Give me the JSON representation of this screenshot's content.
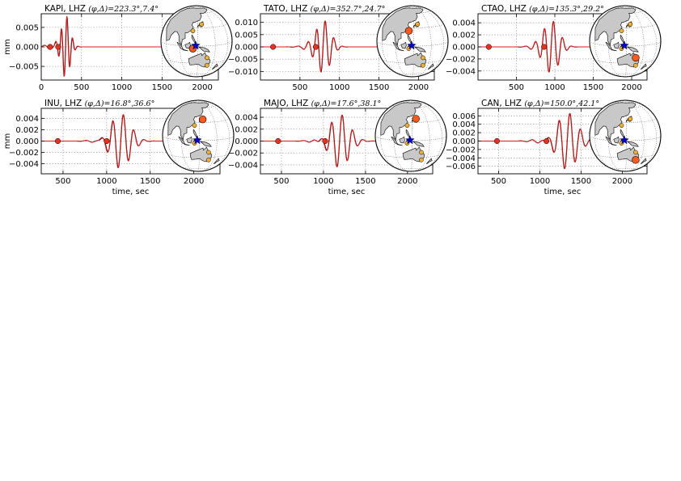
{
  "figure": {
    "xlabel": "time, sec",
    "ylabel": "mm"
  },
  "colors": {
    "observed": "#000000",
    "synthetic": "#e41a1c",
    "marker": "#e8321e",
    "land": "#c8c8c8",
    "event": "#0000cc",
    "station": "#f0b030",
    "active_station": "#ff5a1e"
  },
  "chart_data": [
    {
      "type": "line",
      "station": "KAPI",
      "channel": "LHZ",
      "phi_deg": "223.3°",
      "delta_deg": "7.4°",
      "title_prefix": "KAPI, LHZ",
      "title_math": "(φ,Δ)=223.3°,7.4°",
      "xlim": [
        0,
        2200
      ],
      "ylim": [
        -0.0085,
        0.0085
      ],
      "xticks": [
        0,
        500,
        1000,
        1500,
        2000
      ],
      "xtick_labels": [
        "0",
        "500",
        "1000",
        "1500",
        "2000"
      ],
      "yticks": [
        -0.005,
        0.0,
        0.005
      ],
      "ytick_labels": [
        "−0.005",
        "0.000",
        "0.005"
      ],
      "xlabel": "",
      "ylabel": "mm",
      "markers": [
        110,
        210
      ],
      "wave": {
        "center": 300,
        "amp": 0.0078,
        "period": 70,
        "width": 55,
        "synthetic_end": 2200
      },
      "inset": {
        "station_lon": 122.0,
        "station_lat": -4.0,
        "event_lon": 126.6,
        "event_lat": 1.0
      }
    },
    {
      "type": "line",
      "station": "TATO",
      "channel": "LHZ",
      "phi_deg": "352.7°",
      "delta_deg": "24.7°",
      "title_prefix": "TATO, LHZ",
      "title_math": "(φ,Δ)=352.7°,24.7°",
      "xlim": [
        0,
        2200
      ],
      "ylim": [
        -0.0135,
        0.0135
      ],
      "xticks": [
        500,
        1000,
        1500,
        2000
      ],
      "xtick_labels": [
        "500",
        "1000",
        "1500",
        "2000"
      ],
      "yticks": [
        -0.01,
        -0.005,
        0.0,
        0.005,
        0.01
      ],
      "ytick_labels": [
        "−0.010",
        "−0.005",
        "0.000",
        "0.005",
        "0.010"
      ],
      "xlabel": "",
      "ylabel": "",
      "markers": [
        160,
        700
      ],
      "wave": {
        "center": 790,
        "amp": 0.0112,
        "period": 110,
        "width": 90,
        "synthetic_end": 2200
      },
      "inset": {
        "station_lon": 121.5,
        "station_lat": 24.9,
        "event_lon": 126.6,
        "event_lat": 1.0
      }
    },
    {
      "type": "line",
      "station": "CTAO",
      "channel": "LHZ",
      "phi_deg": "135.3°",
      "delta_deg": "29.2°",
      "title_prefix": "CTAO, LHZ",
      "title_math": "(φ,Δ)=135.3°,29.2°",
      "xlim": [
        0,
        2200
      ],
      "ylim": [
        -0.0055,
        0.0055
      ],
      "xticks": [
        500,
        1000,
        1500,
        2000
      ],
      "xtick_labels": [
        "500",
        "1000",
        "1500",
        "2000"
      ],
      "yticks": [
        -0.004,
        -0.002,
        0.0,
        0.002,
        0.004
      ],
      "ytick_labels": [
        "−0.004",
        "−0.002",
        "0.000",
        "0.002",
        "0.004"
      ],
      "xlabel": "",
      "ylabel": "",
      "markers": [
        140,
        860
      ],
      "wave": {
        "center": 950,
        "amp": 0.0045,
        "period": 120,
        "width": 100,
        "synthetic_end": 1730
      },
      "inset": {
        "station_lon": 146.3,
        "station_lat": -20.1,
        "event_lon": 126.6,
        "event_lat": 1.0
      }
    },
    {
      "type": "line",
      "station": "INU",
      "channel": "LHZ",
      "phi_deg": "16.8°",
      "delta_deg": "36.6°",
      "title_prefix": "INU, LHZ",
      "title_math": "(φ,Δ)=16.8°,36.6°",
      "xlim": [
        250,
        2300
      ],
      "ylim": [
        -0.0058,
        0.0058
      ],
      "xticks": [
        500,
        1000,
        1500,
        2000
      ],
      "xtick_labels": [
        "500",
        "1000",
        "1500",
        "2000"
      ],
      "yticks": [
        -0.004,
        -0.002,
        0.0,
        0.002,
        0.004
      ],
      "ytick_labels": [
        "−0.004",
        "−0.002",
        "0.000",
        "0.002",
        "0.004"
      ],
      "xlabel": "time, sec",
      "ylabel": "mm",
      "markers": [
        440,
        1000
      ],
      "wave": {
        "center": 1160,
        "amp": 0.0048,
        "period": 120,
        "width": 110,
        "synthetic_end": 1730
      },
      "inset": {
        "station_lon": 137.0,
        "station_lat": 35.4,
        "event_lon": 126.6,
        "event_lat": 1.0
      }
    },
    {
      "type": "line",
      "station": "MAJO",
      "channel": "LHZ",
      "phi_deg": "17.6°",
      "delta_deg": "38.1°",
      "title_prefix": "MAJO, LHZ",
      "title_math": "(φ,Δ)=17.6°,38.1°",
      "xlim": [
        250,
        2300
      ],
      "ylim": [
        -0.0055,
        0.0055
      ],
      "xticks": [
        500,
        1000,
        1500,
        2000
      ],
      "xtick_labels": [
        "500",
        "1000",
        "1500",
        "2000"
      ],
      "yticks": [
        -0.004,
        -0.002,
        0.0,
        0.002,
        0.004
      ],
      "ytick_labels": [
        "−0.004",
        "−0.002",
        "0.000",
        "0.002",
        "0.004"
      ],
      "xlabel": "time, sec",
      "ylabel": "",
      "markers": [
        460,
        1020
      ],
      "wave": {
        "center": 1190,
        "amp": 0.0045,
        "period": 125,
        "width": 115,
        "synthetic_end": 1730
      },
      "inset": {
        "station_lon": 138.2,
        "station_lat": 36.5,
        "event_lon": 126.6,
        "event_lat": 1.0
      }
    },
    {
      "type": "line",
      "station": "CAN",
      "channel": "LHZ",
      "phi_deg": "150.0°",
      "delta_deg": "42.1°",
      "title_prefix": "CAN, LHZ",
      "title_math": "(φ,Δ)=150.0°,42.1°",
      "xlim": [
        250,
        2300
      ],
      "ylim": [
        -0.0078,
        0.0078
      ],
      "xticks": [
        500,
        1000,
        1500,
        2000
      ],
      "xtick_labels": [
        "500",
        "1000",
        "1500",
        "2000"
      ],
      "yticks": [
        -0.006,
        -0.004,
        -0.002,
        0.0,
        0.002,
        0.004,
        0.006
      ],
      "ytick_labels": [
        "−0.006",
        "−0.004",
        "−0.002",
        "0.000",
        "0.002",
        "0.004",
        "0.006"
      ],
      "xlabel": "time, sec",
      "ylabel": "",
      "markers": [
        480,
        1080
      ],
      "wave": {
        "center": 1330,
        "amp": 0.0068,
        "period": 130,
        "width": 120,
        "synthetic_end": 1730
      },
      "inset": {
        "station_lon": 149.0,
        "station_lat": -35.3,
        "event_lon": 126.6,
        "event_lat": 1.0
      }
    }
  ]
}
